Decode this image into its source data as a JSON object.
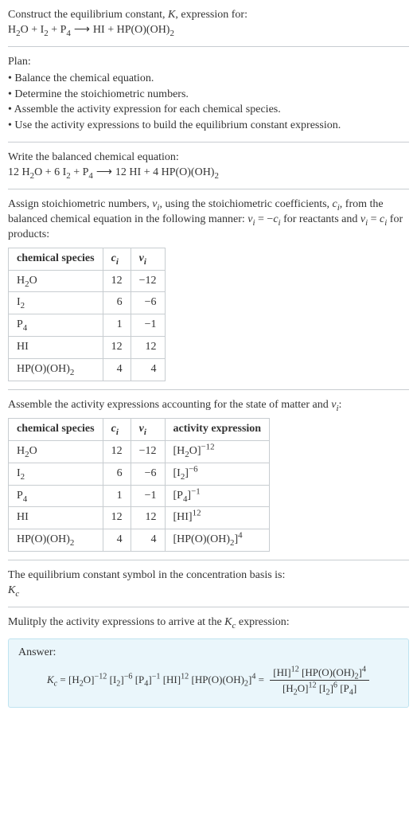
{
  "intro": {
    "line1": "Construct the equilibrium constant, K, expression for:",
    "reaction_unbalanced": "H₂O + I₂ + P₄  ⟶  HI + HP(O)(OH)₂"
  },
  "plan": {
    "label": "Plan:",
    "items": [
      "Balance the chemical equation.",
      "Determine the stoichiometric numbers.",
      "Assemble the activity expression for each chemical species.",
      "Use the activity expressions to build the equilibrium constant expression."
    ]
  },
  "balanced": {
    "label": "Write the balanced chemical equation:",
    "equation": "12 H₂O + 6 I₂ + P₄  ⟶  12 HI + 4 HP(O)(OH)₂"
  },
  "stoich": {
    "text": "Assign stoichiometric numbers, νᵢ, using the stoichiometric coefficients, cᵢ, from the balanced chemical equation in the following manner: νᵢ = −cᵢ for reactants and νᵢ = cᵢ for products:",
    "headers": {
      "species": "chemical species",
      "ci": "cᵢ",
      "vi": "νᵢ"
    },
    "rows": [
      {
        "species": "H₂O",
        "ci": "12",
        "vi": "−12"
      },
      {
        "species": "I₂",
        "ci": "6",
        "vi": "−6"
      },
      {
        "species": "P₄",
        "ci": "1",
        "vi": "−1"
      },
      {
        "species": "HI",
        "ci": "12",
        "vi": "12"
      },
      {
        "species": "HP(O)(OH)₂",
        "ci": "4",
        "vi": "4"
      }
    ]
  },
  "activity": {
    "text": "Assemble the activity expressions accounting for the state of matter and νᵢ:",
    "headers": {
      "species": "chemical species",
      "ci": "cᵢ",
      "vi": "νᵢ",
      "act": "activity expression"
    },
    "rows": [
      {
        "species": "H₂O",
        "ci": "12",
        "vi": "−12",
        "base": "[H₂O]",
        "exp": "−12"
      },
      {
        "species": "I₂",
        "ci": "6",
        "vi": "−6",
        "base": "[I₂]",
        "exp": "−6"
      },
      {
        "species": "P₄",
        "ci": "1",
        "vi": "−1",
        "base": "[P₄]",
        "exp": "−1"
      },
      {
        "species": "HI",
        "ci": "12",
        "vi": "12",
        "base": "[HI]",
        "exp": "12"
      },
      {
        "species": "HP(O)(OH)₂",
        "ci": "4",
        "vi": "4",
        "base": "[HP(O)(OH)₂]",
        "exp": "4"
      }
    ]
  },
  "kc_symbol": {
    "text": "The equilibrium constant symbol in the concentration basis is:",
    "symbol": "K𝒸"
  },
  "multiply": {
    "text": "Mulitply the activity expressions to arrive at the K𝒸 expression:"
  },
  "answer": {
    "label": "Answer:",
    "lhs": "K𝒸 = [H₂O]⁻¹² [I₂]⁻⁶ [P₄]⁻¹ [HI]¹² [HP(O)(OH)₂]⁴ =",
    "num": "[HI]¹² [HP(O)(OH)₂]⁴",
    "den": "[H₂O]¹² [I₂]⁶ [P₄]"
  },
  "style": {
    "accent_bg": "#eaf6fb",
    "accent_border": "#bfe3f0",
    "rule_color": "#c8cdd1",
    "font": "Georgia"
  }
}
